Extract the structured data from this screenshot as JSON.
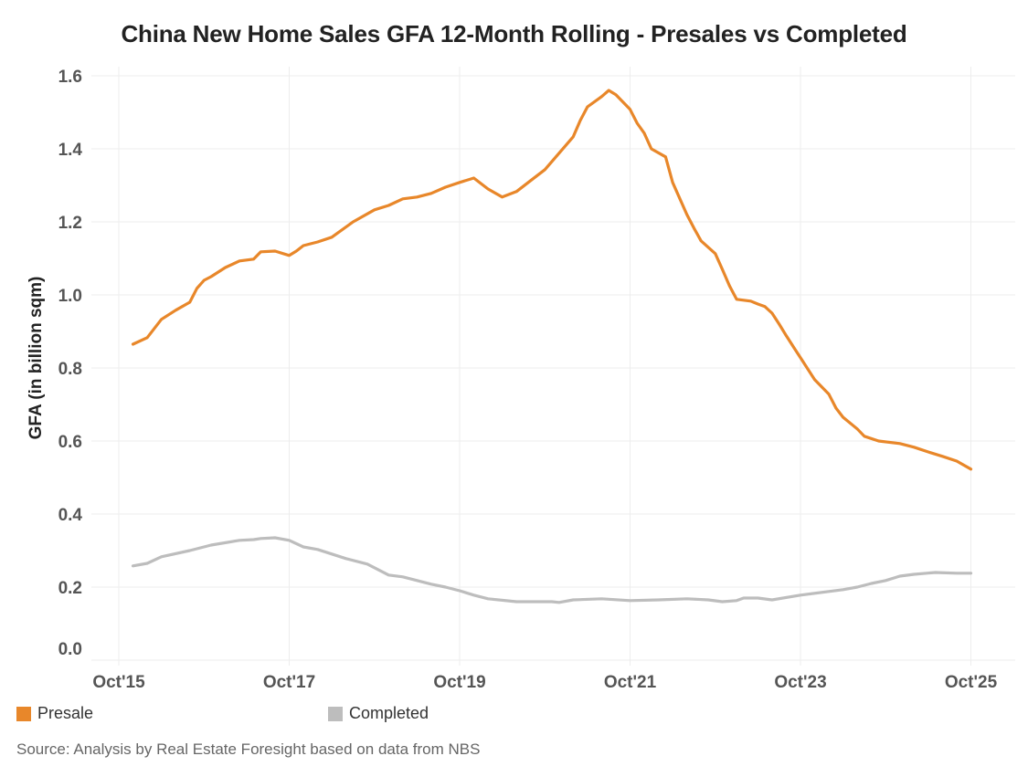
{
  "chart_data": {
    "type": "line",
    "title": "China New Home Sales GFA 12-Month Rolling - Presales vs Completed",
    "xlabel": "",
    "ylabel": "GFA (in billion sqm)",
    "ylim": [
      0,
      1.6
    ],
    "yticks": [
      "0.0",
      "0.2",
      "0.4",
      "0.6",
      "0.8",
      "1.0",
      "1.2",
      "1.4",
      "1.6"
    ],
    "ytick_values": [
      0,
      0.2,
      0.4,
      0.6,
      0.8,
      1.0,
      1.2,
      1.4,
      1.6
    ],
    "xticks": [
      "Oct'15",
      "Oct'17",
      "Oct'19",
      "Oct'21",
      "Oct'23",
      "Oct'25"
    ],
    "xtick_months": [
      0,
      24,
      48,
      72,
      96,
      120
    ],
    "x_unit": "months since Oct 2015",
    "xlim_months": [
      -2,
      126
    ],
    "grid": true,
    "legend_position": "bottom-left",
    "series": [
      {
        "name": "Presale",
        "color": "#E8872A",
        "x": [
          2,
          4,
          6,
          8,
          10,
          11,
          12,
          13,
          15,
          17,
          19,
          20,
          22,
          24,
          25,
          26,
          28,
          30,
          33,
          36,
          38,
          40,
          42,
          44,
          46,
          48,
          50,
          52,
          54,
          56,
          58,
          60,
          62,
          64,
          65,
          66,
          68,
          69,
          70,
          72,
          73,
          74,
          75,
          77,
          78,
          80,
          81,
          82,
          84,
          85,
          86,
          87,
          89,
          90,
          91,
          92,
          93,
          94,
          95,
          96,
          98,
          100,
          101,
          102,
          104,
          105,
          107,
          110,
          112,
          114,
          116,
          118,
          120
        ],
        "values": [
          0.865,
          0.883,
          0.933,
          0.958,
          0.98,
          1.018,
          1.04,
          1.05,
          1.075,
          1.093,
          1.098,
          1.118,
          1.12,
          1.108,
          1.12,
          1.135,
          1.145,
          1.158,
          1.2,
          1.233,
          1.245,
          1.263,
          1.268,
          1.278,
          1.295,
          1.308,
          1.32,
          1.29,
          1.268,
          1.283,
          1.313,
          1.343,
          1.388,
          1.433,
          1.478,
          1.515,
          1.543,
          1.56,
          1.548,
          1.508,
          1.47,
          1.443,
          1.4,
          1.378,
          1.308,
          1.22,
          1.183,
          1.148,
          1.113,
          1.07,
          1.025,
          0.988,
          0.983,
          0.975,
          0.968,
          0.95,
          0.92,
          0.888,
          0.858,
          0.828,
          0.768,
          0.728,
          0.69,
          0.665,
          0.633,
          0.613,
          0.6,
          0.593,
          0.583,
          0.57,
          0.558,
          0.545,
          0.523
        ]
      },
      {
        "name": "Completed",
        "color": "#BDBDBD",
        "x": [
          2,
          4,
          6,
          10,
          13,
          17,
          19,
          20,
          22,
          24,
          26,
          28,
          32,
          35,
          38,
          40,
          44,
          46,
          48,
          50,
          52,
          56,
          58,
          61,
          62,
          64,
          68,
          72,
          76,
          80,
          83,
          85,
          87,
          88,
          90,
          92,
          96,
          100,
          102,
          104,
          106,
          108,
          110,
          112,
          115,
          118,
          120
        ],
        "values": [
          0.258,
          0.265,
          0.283,
          0.3,
          0.315,
          0.328,
          0.33,
          0.333,
          0.335,
          0.328,
          0.31,
          0.303,
          0.278,
          0.263,
          0.233,
          0.228,
          0.208,
          0.2,
          0.19,
          0.178,
          0.168,
          0.16,
          0.16,
          0.16,
          0.158,
          0.165,
          0.168,
          0.163,
          0.165,
          0.168,
          0.165,
          0.16,
          0.163,
          0.17,
          0.17,
          0.165,
          0.178,
          0.188,
          0.193,
          0.2,
          0.21,
          0.218,
          0.23,
          0.235,
          0.24,
          0.238,
          0.238
        ]
      }
    ]
  },
  "legend": {
    "items": [
      {
        "label": "Presale",
        "color": "#E8872A"
      },
      {
        "label": "Completed",
        "color": "#BDBDBD"
      }
    ]
  },
  "source": "Source: Analysis by Real Estate Foresight based on data from NBS"
}
